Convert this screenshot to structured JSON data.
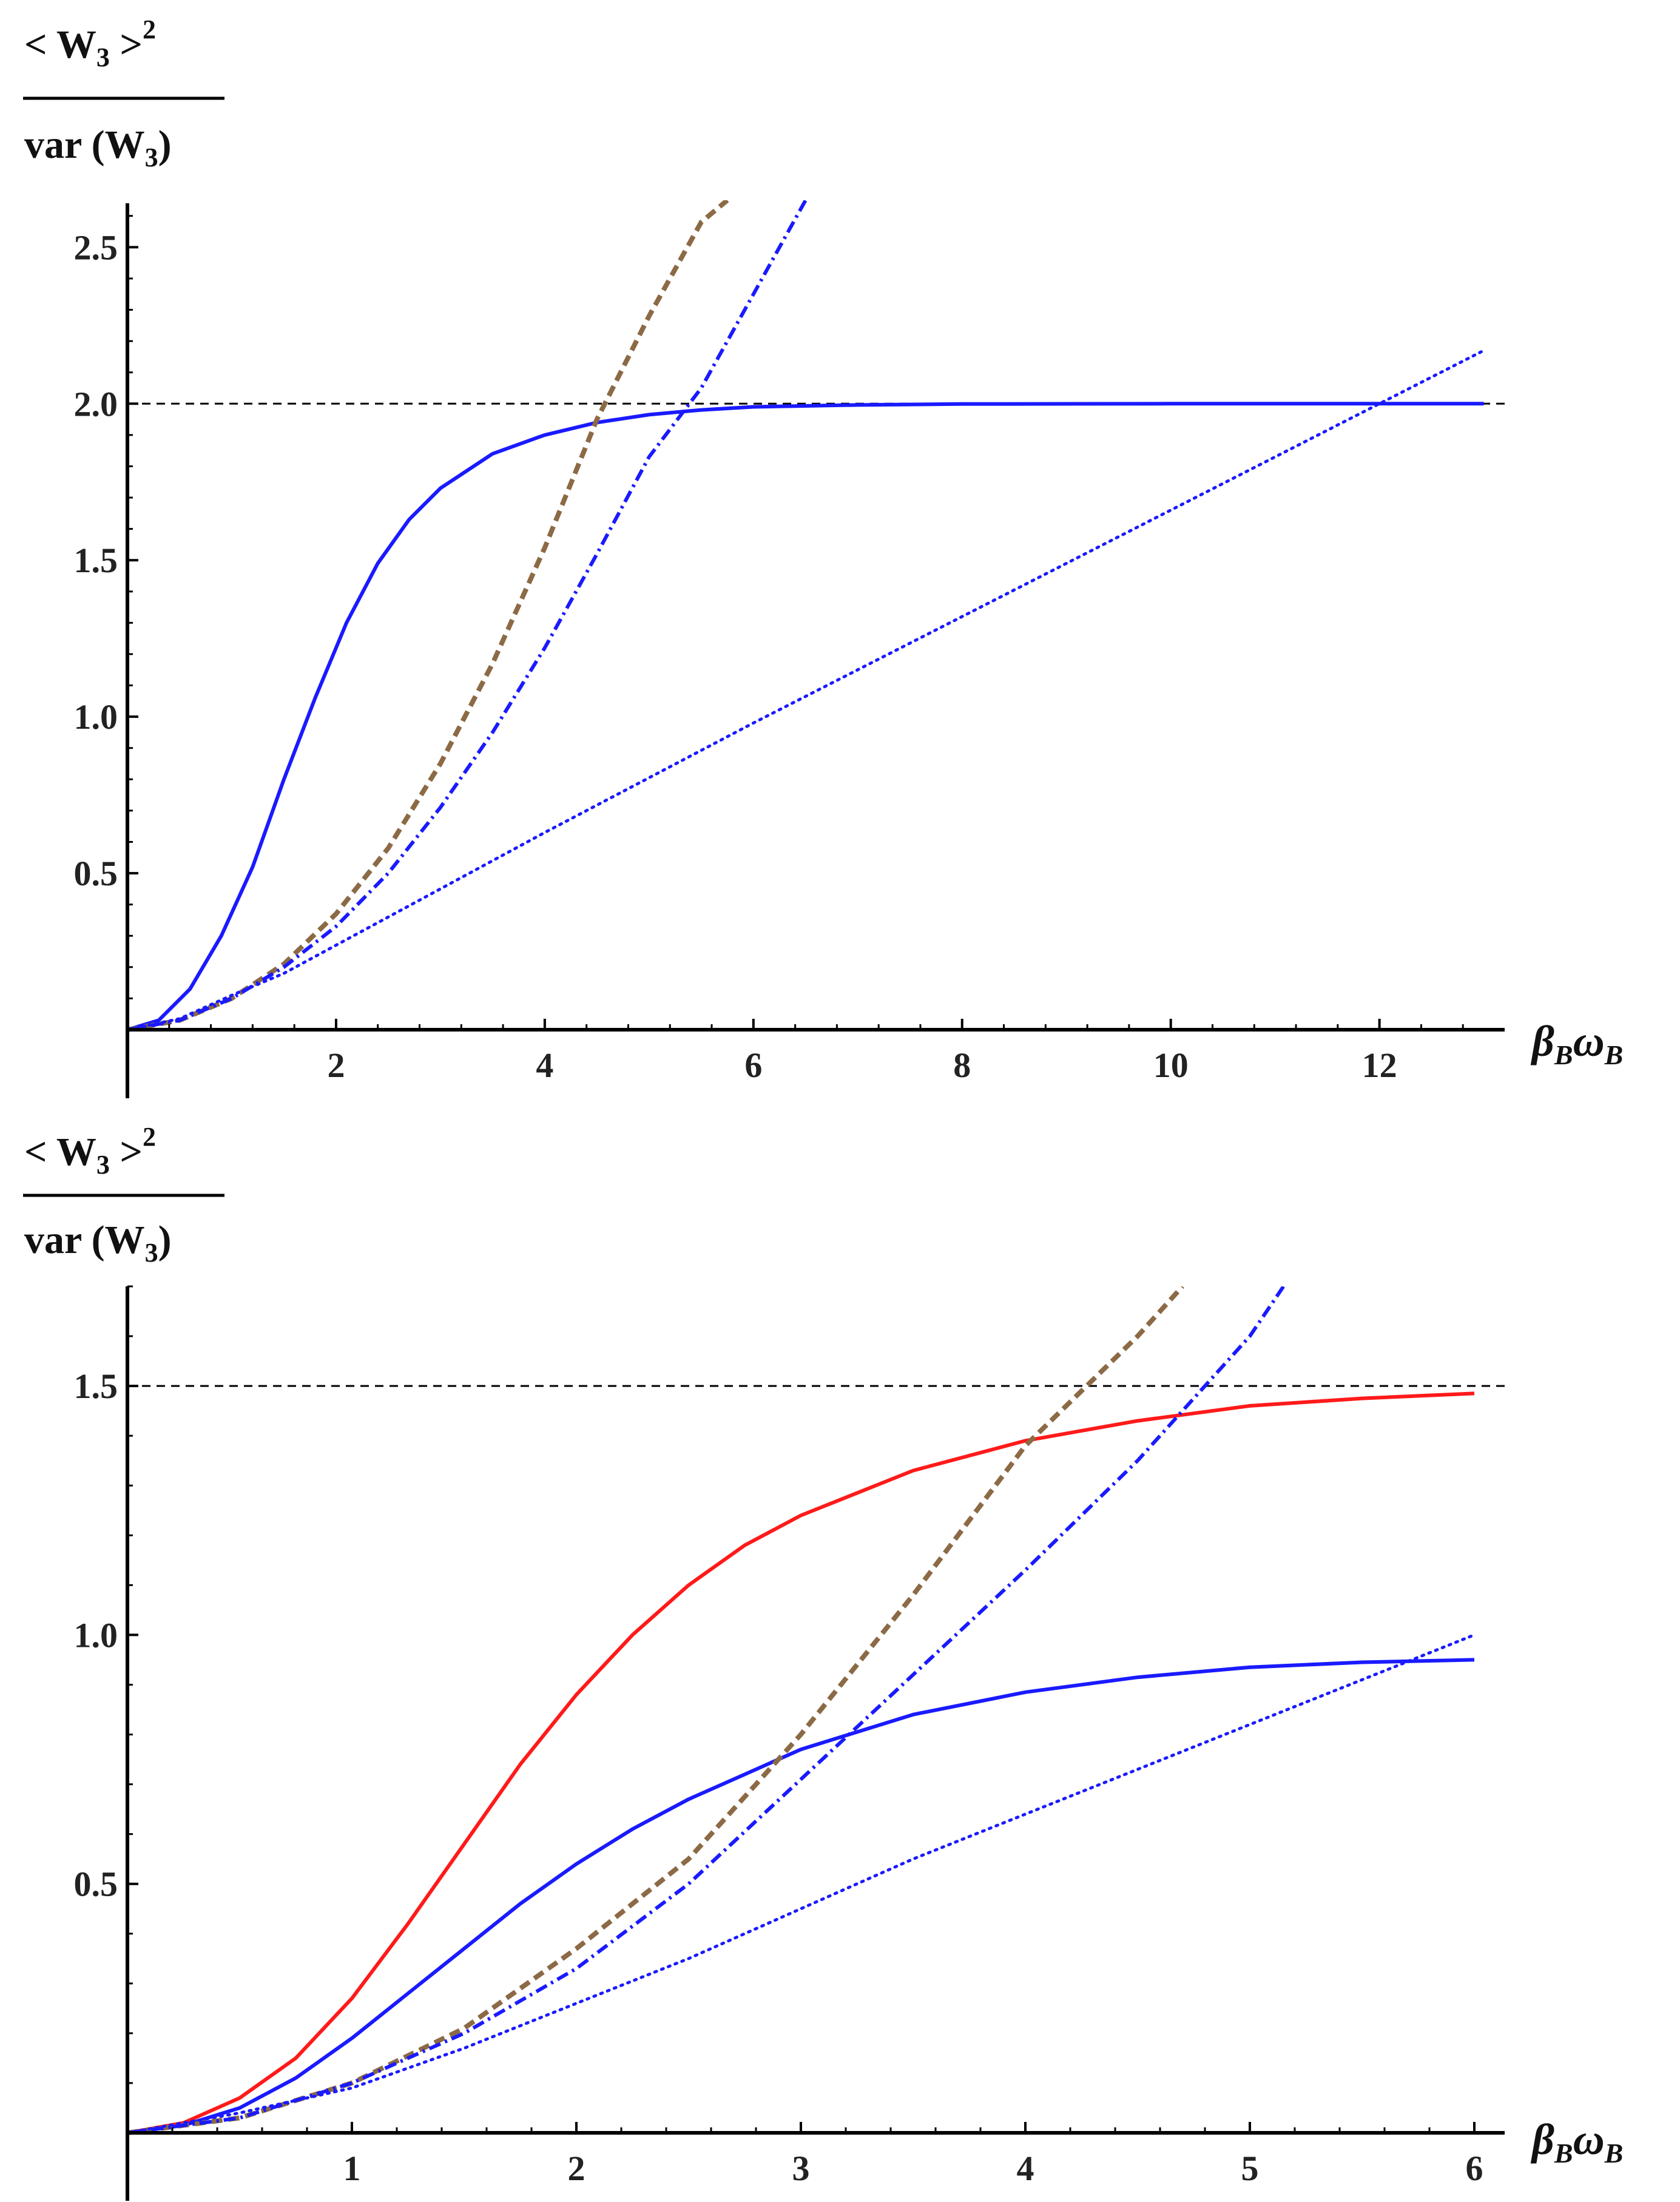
{
  "chart_data": [
    {
      "type": "line",
      "panel": "top",
      "ylabel": {
        "numerator": "< W",
        "numerator_sub": "3",
        "numerator_close": " >",
        "numerator_sup": "2",
        "denominator": "var (W",
        "denominator_sub": "3",
        "denominator_close": ")"
      },
      "xlabel": {
        "beta": "β",
        "beta_sub": "B",
        "omega": "ω",
        "omega_sub": "B"
      },
      "xlim": [
        0,
        13.2
      ],
      "ylim": [
        0,
        2.65
      ],
      "xticks": [
        2,
        4,
        6,
        8,
        10,
        12
      ],
      "xtick_labels": [
        "2",
        "4",
        "6",
        "8",
        "10",
        "12"
      ],
      "yticks": [
        0.5,
        1.0,
        1.5,
        2.0,
        2.5
      ],
      "ytick_labels": [
        "0.5",
        "1.0",
        "1.5",
        "2.0",
        "2.5"
      ],
      "hlines": [
        {
          "y": 2.0,
          "style": "dashed",
          "color": "#000000"
        }
      ],
      "series": [
        {
          "name": "solid-blue",
          "color": "#1a1aff",
          "style": "solid",
          "x": [
            0,
            0.3,
            0.6,
            0.9,
            1.2,
            1.5,
            1.8,
            2.1,
            2.4,
            2.7,
            3.0,
            3.5,
            4.0,
            4.5,
            5.0,
            5.5,
            6.0,
            7.0,
            8.0,
            10.0,
            12.0,
            13.0
          ],
          "y": [
            0,
            0.03,
            0.13,
            0.3,
            0.52,
            0.8,
            1.06,
            1.3,
            1.49,
            1.63,
            1.73,
            1.84,
            1.9,
            1.94,
            1.965,
            1.98,
            1.99,
            1.996,
            1.999,
            2.0,
            2.0,
            2.0
          ]
        },
        {
          "name": "dashed-brown",
          "color": "#8b6a45",
          "style": "dashed",
          "x": [
            0,
            0.5,
            1.0,
            1.5,
            2.0,
            2.5,
            3.0,
            3.5,
            4.0,
            4.5,
            5.0,
            5.5,
            5.75
          ],
          "y": [
            0,
            0.03,
            0.1,
            0.21,
            0.37,
            0.58,
            0.85,
            1.17,
            1.54,
            1.95,
            2.28,
            2.58,
            2.65
          ]
        },
        {
          "name": "dashdot-blue",
          "color": "#1a1aff",
          "style": "dashdot",
          "x": [
            0,
            0.5,
            1.0,
            1.5,
            2.0,
            2.5,
            3.0,
            3.5,
            4.0,
            4.5,
            5.0,
            5.5,
            6.0,
            6.5
          ],
          "y": [
            0,
            0.03,
            0.1,
            0.2,
            0.33,
            0.5,
            0.71,
            0.95,
            1.22,
            1.52,
            1.83,
            2.05,
            2.35,
            2.65
          ]
        },
        {
          "name": "dotted-blue",
          "color": "#1a1aff",
          "style": "dotted",
          "x": [
            0,
            0.5,
            1.0,
            1.5,
            2.0,
            3.0,
            4.0,
            6.0,
            8.0,
            10.0,
            12.0,
            13.0
          ],
          "y": [
            0,
            0.035,
            0.11,
            0.18,
            0.27,
            0.45,
            0.63,
            0.98,
            1.32,
            1.66,
            2.0,
            2.17
          ]
        }
      ]
    },
    {
      "type": "line",
      "panel": "bottom",
      "ylabel": {
        "numerator": "< W",
        "numerator_sub": "3",
        "numerator_close": " >",
        "numerator_sup": "2",
        "denominator": "var (W",
        "denominator_sub": "3",
        "denominator_close": ")"
      },
      "xlabel": {
        "beta": "β",
        "beta_sub": "B",
        "omega": "ω",
        "omega_sub": "B"
      },
      "xlim": [
        0,
        6.1
      ],
      "ylim": [
        0,
        1.7
      ],
      "xticks": [
        1,
        2,
        3,
        4,
        5,
        6
      ],
      "xtick_labels": [
        "1",
        "2",
        "3",
        "4",
        "5",
        "6"
      ],
      "yticks": [
        0.5,
        1.0,
        1.5
      ],
      "ytick_labels": [
        "0.5",
        "1.0",
        "1.5"
      ],
      "hlines": [
        {
          "y": 1.5,
          "style": "dashed",
          "color": "#000000"
        }
      ],
      "series": [
        {
          "name": "solid-red",
          "color": "#ff1a1a",
          "style": "solid",
          "x": [
            0,
            0.25,
            0.5,
            0.75,
            1.0,
            1.25,
            1.5,
            1.75,
            2.0,
            2.25,
            2.5,
            2.75,
            3.0,
            3.5,
            4.0,
            4.5,
            5.0,
            5.5,
            6.0
          ],
          "y": [
            0,
            0.02,
            0.07,
            0.15,
            0.27,
            0.42,
            0.58,
            0.74,
            0.88,
            1.0,
            1.1,
            1.18,
            1.24,
            1.33,
            1.39,
            1.43,
            1.46,
            1.475,
            1.485
          ]
        },
        {
          "name": "solid-blue",
          "color": "#1a1aff",
          "style": "solid",
          "x": [
            0,
            0.25,
            0.5,
            0.75,
            1.0,
            1.25,
            1.5,
            1.75,
            2.0,
            2.25,
            2.5,
            2.75,
            3.0,
            3.5,
            4.0,
            4.5,
            5.0,
            5.5,
            6.0
          ],
          "y": [
            0,
            0.015,
            0.05,
            0.11,
            0.19,
            0.28,
            0.37,
            0.46,
            0.54,
            0.61,
            0.67,
            0.72,
            0.77,
            0.84,
            0.885,
            0.915,
            0.935,
            0.945,
            0.95
          ]
        },
        {
          "name": "dashed-brown",
          "color": "#8b6a45",
          "style": "dashed",
          "x": [
            0,
            0.5,
            1.0,
            1.5,
            2.0,
            2.5,
            3.0,
            3.5,
            4.0,
            4.5,
            4.7
          ],
          "y": [
            0,
            0.03,
            0.1,
            0.21,
            0.37,
            0.55,
            0.8,
            1.08,
            1.38,
            1.6,
            1.7
          ]
        },
        {
          "name": "dashdot-blue",
          "color": "#1a1aff",
          "style": "dashdot",
          "x": [
            0,
            0.5,
            1.0,
            1.5,
            2.0,
            2.5,
            3.0,
            3.5,
            4.0,
            4.5,
            5.0,
            5.15
          ],
          "y": [
            0,
            0.03,
            0.1,
            0.2,
            0.33,
            0.5,
            0.71,
            0.92,
            1.13,
            1.35,
            1.6,
            1.7
          ]
        },
        {
          "name": "dotted-blue",
          "color": "#1a1aff",
          "style": "dotted",
          "x": [
            0,
            0.5,
            1.0,
            1.5,
            2.0,
            2.5,
            3.0,
            3.5,
            4.0,
            4.5,
            5.0,
            5.5,
            6.0
          ],
          "y": [
            0,
            0.04,
            0.09,
            0.17,
            0.26,
            0.35,
            0.45,
            0.55,
            0.64,
            0.73,
            0.82,
            0.91,
            1.0
          ]
        }
      ]
    }
  ]
}
